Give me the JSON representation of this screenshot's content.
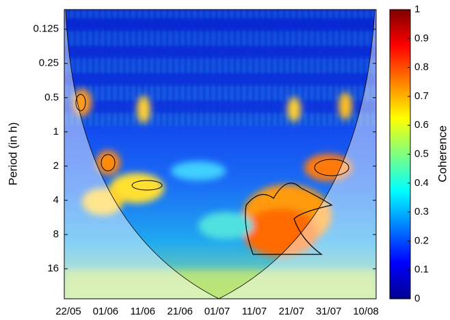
{
  "chart_data": {
    "type": "heatmap",
    "ylabel": "Period (in h)",
    "categories": [
      "22/05",
      "01/06",
      "11/06",
      "21/06",
      "01/07",
      "11/07",
      "21/07",
      "31/07",
      "10/08"
    ],
    "yscale": "log",
    "y_reversed": true,
    "ylim": [
      0.084,
      29.4
    ],
    "yticks": [
      0.125,
      0.25,
      0.5,
      1,
      2,
      4,
      8,
      16
    ],
    "colorbar_label": "Coherence",
    "clim": [
      0,
      1
    ],
    "cticks": [
      0,
      0.1,
      0.2,
      0.3,
      0.4,
      0.5,
      0.6,
      0.7,
      0.8,
      0.9,
      1
    ]
  }
}
